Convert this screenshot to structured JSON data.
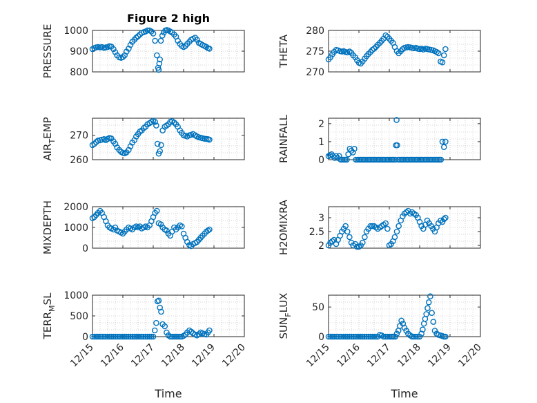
{
  "figure": {
    "title": "Figure 2 high",
    "marker_color": "#0072BD",
    "axis_color": "#262626",
    "grid_color": "#c8c8c8"
  },
  "chart_data": [
    {
      "id": "pressure",
      "type": "scatter",
      "ylabel": "PRESSURE",
      "ylabel_sub": null,
      "title": "Figure 2 high",
      "xlim": [
        15,
        20
      ],
      "ylim": [
        800,
        1000
      ],
      "yticks": [
        800,
        900,
        1000
      ],
      "xticks": [],
      "xlabel": "",
      "grid": true,
      "x": [
        15.0,
        15.06,
        15.12,
        15.18,
        15.25,
        15.31,
        15.38,
        15.44,
        15.5,
        15.56,
        15.62,
        15.69,
        15.75,
        15.81,
        15.88,
        15.94,
        16.0,
        16.06,
        16.12,
        16.19,
        16.25,
        16.31,
        16.38,
        16.44,
        16.5,
        16.56,
        16.62,
        16.69,
        16.75,
        16.81,
        16.88,
        16.94,
        17.0,
        17.06,
        17.12,
        17.16,
        17.18,
        17.2,
        17.22,
        17.25,
        17.3,
        17.35,
        17.4,
        17.45,
        17.5,
        17.56,
        17.62,
        17.69,
        17.75,
        17.81,
        17.88,
        17.94,
        18.0,
        18.06,
        18.12,
        18.19,
        18.25,
        18.31,
        18.38,
        18.44,
        18.5,
        18.56,
        18.62,
        18.69,
        18.75,
        18.8,
        18.85
      ],
      "y": [
        910,
        915,
        918,
        920,
        918,
        920,
        916,
        918,
        920,
        924,
        922,
        910,
        895,
        880,
        870,
        868,
        872,
        880,
        898,
        912,
        930,
        945,
        955,
        965,
        972,
        980,
        988,
        992,
        995,
        1000,
        1000,
        995,
        985,
        950,
        880,
        820,
        810,
        840,
        860,
        950,
        975,
        990,
        1000,
        1002,
        1000,
        995,
        990,
        980,
        970,
        950,
        935,
        925,
        920,
        925,
        935,
        945,
        955,
        960,
        965,
        955,
        940,
        935,
        930,
        925,
        920,
        915,
        912
      ]
    },
    {
      "id": "theta",
      "type": "scatter",
      "ylabel": "THETA",
      "ylabel_sub": null,
      "xlim": [
        15,
        20
      ],
      "ylim": [
        270,
        280
      ],
      "yticks": [
        270,
        275,
        280
      ],
      "xticks": [],
      "xlabel": "",
      "grid": true,
      "x": [
        15.0,
        15.06,
        15.12,
        15.18,
        15.25,
        15.31,
        15.38,
        15.44,
        15.5,
        15.56,
        15.62,
        15.69,
        15.75,
        15.81,
        15.88,
        15.94,
        16.0,
        16.06,
        16.12,
        16.19,
        16.25,
        16.31,
        16.38,
        16.44,
        16.5,
        16.56,
        16.62,
        16.69,
        16.75,
        16.81,
        16.88,
        16.94,
        17.0,
        17.06,
        17.12,
        17.18,
        17.25,
        17.31,
        17.38,
        17.44,
        17.5,
        17.56,
        17.62,
        17.69,
        17.75,
        17.81,
        17.88,
        17.94,
        18.0,
        18.06,
        18.12,
        18.19,
        18.25,
        18.31,
        18.38,
        18.44,
        18.5,
        18.56,
        18.62,
        18.69,
        18.75,
        18.8,
        18.85
      ],
      "y": [
        273.0,
        273.5,
        274.2,
        274.8,
        275.3,
        275.2,
        275.0,
        274.9,
        275.0,
        274.8,
        274.7,
        274.9,
        274.6,
        274.0,
        273.5,
        272.8,
        272.2,
        272.0,
        272.5,
        273.2,
        273.8,
        274.3,
        274.8,
        275.3,
        275.6,
        276.0,
        276.5,
        277.0,
        277.5,
        278.0,
        278.8,
        278.5,
        278.0,
        277.5,
        277.0,
        276.0,
        275.0,
        274.5,
        275.0,
        275.5,
        275.8,
        275.9,
        276.0,
        275.9,
        275.8,
        275.7,
        275.8,
        275.6,
        275.5,
        275.6,
        275.4,
        275.6,
        275.5,
        275.4,
        275.3,
        275.2,
        275.0,
        274.8,
        274.5,
        272.5,
        272.3,
        274.0,
        275.5
      ]
    },
    {
      "id": "air_temp",
      "type": "scatter",
      "ylabel": "AIR",
      "ylabel_sub": "T",
      "ylabel_suffix": "EMP",
      "xlim": [
        15,
        20
      ],
      "ylim": [
        260,
        277
      ],
      "yticks": [
        260,
        270
      ],
      "xticks": [],
      "xlabel": "",
      "grid": true,
      "x": [
        15.0,
        15.06,
        15.12,
        15.18,
        15.25,
        15.31,
        15.38,
        15.44,
        15.5,
        15.56,
        15.62,
        15.69,
        15.75,
        15.81,
        15.88,
        15.94,
        16.0,
        16.06,
        16.12,
        16.19,
        16.25,
        16.31,
        16.38,
        16.44,
        16.5,
        16.56,
        16.62,
        16.69,
        16.75,
        16.81,
        16.88,
        16.94,
        17.0,
        17.06,
        17.1,
        17.14,
        17.18,
        17.22,
        17.26,
        17.31,
        17.38,
        17.44,
        17.5,
        17.56,
        17.62,
        17.69,
        17.75,
        17.81,
        17.88,
        17.94,
        18.0,
        18.06,
        18.12,
        18.19,
        18.25,
        18.31,
        18.38,
        18.44,
        18.5,
        18.56,
        18.62,
        18.69,
        18.75,
        18.8,
        18.85
      ],
      "y": [
        266,
        266.5,
        267.2,
        267.8,
        268.0,
        268.2,
        268.4,
        268.0,
        268.5,
        268.9,
        268.7,
        267.5,
        266.5,
        265.0,
        264.0,
        263.2,
        262.8,
        262.6,
        263.0,
        264.0,
        265.5,
        267.0,
        268.0,
        269.5,
        270.5,
        271.5,
        272.0,
        273.0,
        273.5,
        274.5,
        275.0,
        275.5,
        276.0,
        275.5,
        274.0,
        266.5,
        262.5,
        263.5,
        266.0,
        272.0,
        273.5,
        274.0,
        274.5,
        275.5,
        275.8,
        275.2,
        274.5,
        273.5,
        272.0,
        271.0,
        270.0,
        269.8,
        269.5,
        270.0,
        270.2,
        270.5,
        270.0,
        269.5,
        269.2,
        269.0,
        268.8,
        268.6,
        268.5,
        268.4,
        268.2
      ]
    },
    {
      "id": "rainfall",
      "type": "scatter",
      "ylabel": "RAINFALL",
      "ylabel_sub": null,
      "xlim": [
        15,
        20
      ],
      "ylim": [
        0,
        2.3
      ],
      "yticks": [
        0,
        1,
        2
      ],
      "xticks": [],
      "xlabel": "",
      "grid": true,
      "x": [
        15.0,
        15.05,
        15.1,
        15.15,
        15.2,
        15.25,
        15.3,
        15.35,
        15.4,
        15.45,
        15.5,
        15.55,
        15.6,
        15.65,
        15.7,
        15.75,
        15.8,
        15.85,
        15.9,
        15.95,
        16.0,
        16.05,
        16.1,
        16.15,
        16.2,
        16.25,
        16.3,
        16.35,
        16.4,
        16.45,
        16.5,
        16.55,
        16.6,
        16.65,
        16.7,
        16.75,
        16.8,
        16.85,
        16.9,
        16.95,
        17.0,
        17.05,
        17.1,
        17.15,
        17.2,
        17.22,
        17.24,
        17.26,
        17.3,
        17.35,
        17.4,
        17.45,
        17.5,
        17.55,
        17.6,
        17.65,
        17.7,
        17.75,
        17.8,
        17.85,
        17.9,
        17.95,
        18.0,
        18.05,
        18.1,
        18.15,
        18.2,
        18.25,
        18.3,
        18.35,
        18.4,
        18.45,
        18.5,
        18.55,
        18.6,
        18.65,
        18.7,
        18.75,
        18.8,
        18.85
      ],
      "y": [
        0.2,
        0.25,
        0.3,
        0.2,
        0.1,
        0.2,
        0.1,
        0.2,
        0,
        0,
        0,
        0,
        0,
        0.3,
        0.6,
        0.5,
        0.4,
        0.6,
        0,
        0,
        0,
        0,
        0,
        0,
        0,
        0,
        0,
        0,
        0,
        0,
        0,
        0,
        0,
        0,
        0,
        0,
        0,
        0,
        0,
        0,
        0,
        0,
        0,
        0,
        0,
        0.8,
        2.2,
        0.8,
        0,
        0,
        0,
        0,
        0,
        0,
        0,
        0,
        0,
        0,
        0,
        0,
        0,
        0,
        0,
        0,
        0,
        0,
        0,
        0,
        0,
        0,
        0,
        0,
        0,
        0,
        0,
        0,
        0,
        1.0,
        0.7,
        1.0
      ]
    },
    {
      "id": "mixdepth",
      "type": "scatter",
      "ylabel": "MIXDEPTH",
      "ylabel_sub": null,
      "xlim": [
        15,
        20
      ],
      "ylim": [
        0,
        2000
      ],
      "yticks": [
        0,
        1000,
        2000
      ],
      "xticks": [],
      "xlabel": "",
      "grid": true,
      "x": [
        15.0,
        15.06,
        15.12,
        15.18,
        15.25,
        15.31,
        15.38,
        15.44,
        15.5,
        15.56,
        15.62,
        15.69,
        15.75,
        15.81,
        15.88,
        15.94,
        16.0,
        16.06,
        16.12,
        16.19,
        16.25,
        16.31,
        16.38,
        16.44,
        16.5,
        16.56,
        16.62,
        16.69,
        16.75,
        16.81,
        16.88,
        16.94,
        17.0,
        17.06,
        17.12,
        17.18,
        17.25,
        17.31,
        17.38,
        17.44,
        17.5,
        17.56,
        17.62,
        17.69,
        17.75,
        17.81,
        17.88,
        17.94,
        18.0,
        18.06,
        18.12,
        18.19,
        18.25,
        18.31,
        18.38,
        18.44,
        18.5,
        18.56,
        18.62,
        18.69,
        18.75,
        18.8,
        18.85
      ],
      "y": [
        1450,
        1500,
        1600,
        1700,
        1800,
        1700,
        1500,
        1300,
        1100,
        1000,
        950,
        900,
        1000,
        850,
        800,
        750,
        700,
        800,
        900,
        1000,
        950,
        900,
        1000,
        1050,
        1000,
        1050,
        950,
        1000,
        1050,
        1000,
        1100,
        1300,
        1500,
        1700,
        1800,
        1200,
        1150,
        1000,
        900,
        850,
        700,
        600,
        800,
        1000,
        900,
        1000,
        1100,
        1050,
        700,
        500,
        300,
        150,
        100,
        200,
        250,
        300,
        400,
        500,
        600,
        700,
        800,
        850,
        900
      ]
    },
    {
      "id": "h2omixra",
      "type": "scatter",
      "ylabel": "H2OMIXRA",
      "ylabel_sub": null,
      "xlim": [
        15,
        20
      ],
      "ylim": [
        1.9,
        3.4
      ],
      "yticks": [
        2,
        2.5,
        3
      ],
      "xticks": [],
      "xlabel": "",
      "grid": true,
      "x": [
        15.0,
        15.06,
        15.12,
        15.18,
        15.25,
        15.31,
        15.38,
        15.44,
        15.5,
        15.56,
        15.62,
        15.69,
        15.75,
        15.81,
        15.88,
        15.94,
        16.0,
        16.06,
        16.12,
        16.19,
        16.25,
        16.31,
        16.38,
        16.44,
        16.5,
        16.56,
        16.62,
        16.69,
        16.75,
        16.81,
        16.88,
        16.94,
        17.0,
        17.06,
        17.12,
        17.18,
        17.25,
        17.31,
        17.38,
        17.44,
        17.5,
        17.56,
        17.62,
        17.69,
        17.75,
        17.81,
        17.88,
        17.94,
        18.0,
        18.06,
        18.12,
        18.19,
        18.25,
        18.31,
        18.38,
        18.44,
        18.5,
        18.56,
        18.62,
        18.69,
        18.75,
        18.8,
        18.85
      ],
      "y": [
        2.0,
        2.1,
        2.15,
        2.2,
        2.05,
        2.2,
        2.35,
        2.5,
        2.6,
        2.7,
        2.5,
        2.3,
        2.1,
        2.0,
        2.05,
        1.95,
        1.95,
        2.0,
        2.1,
        2.3,
        2.5,
        2.6,
        2.7,
        2.7,
        2.7,
        2.65,
        2.6,
        2.65,
        2.7,
        2.75,
        2.8,
        2.6,
        2.0,
        2.05,
        2.15,
        2.3,
        2.5,
        2.7,
        2.9,
        3.05,
        3.15,
        3.2,
        3.25,
        3.15,
        3.2,
        3.15,
        3.1,
        3.0,
        2.85,
        2.7,
        2.6,
        2.75,
        2.9,
        2.8,
        2.7,
        2.6,
        2.5,
        2.65,
        2.8,
        2.9,
        2.85,
        2.95,
        3.0
      ]
    },
    {
      "id": "terr_msl",
      "type": "scatter",
      "ylabel": "TERR",
      "ylabel_sub": "M",
      "ylabel_suffix": "SL",
      "xlim": [
        15,
        20
      ],
      "ylim": [
        0,
        1000
      ],
      "yticks": [
        0,
        500,
        1000
      ],
      "xticks": [
        "12/15",
        "12/16",
        "12/17",
        "12/18",
        "12/19",
        "12/20"
      ],
      "xtick_values": [
        15,
        16,
        17,
        18,
        19,
        20
      ],
      "xlabel": "Time",
      "grid": true,
      "x": [
        15.0,
        15.06,
        15.12,
        15.18,
        15.25,
        15.31,
        15.38,
        15.44,
        15.5,
        15.56,
        15.62,
        15.69,
        15.75,
        15.81,
        15.88,
        15.94,
        16.0,
        16.06,
        16.12,
        16.19,
        16.25,
        16.31,
        16.38,
        16.44,
        16.5,
        16.56,
        16.62,
        16.69,
        16.75,
        16.81,
        16.88,
        16.94,
        17.0,
        17.05,
        17.1,
        17.14,
        17.18,
        17.22,
        17.26,
        17.31,
        17.38,
        17.44,
        17.5,
        17.56,
        17.62,
        17.69,
        17.75,
        17.81,
        17.88,
        17.94,
        18.0,
        18.06,
        18.12,
        18.19,
        18.25,
        18.31,
        18.38,
        18.44,
        18.5,
        18.56,
        18.62,
        18.69,
        18.75,
        18.8,
        18.85
      ],
      "y": [
        0,
        0,
        0,
        0,
        0,
        0,
        0,
        0,
        0,
        0,
        0,
        0,
        0,
        0,
        0,
        0,
        0,
        0,
        0,
        0,
        0,
        0,
        0,
        0,
        0,
        0,
        0,
        0,
        0,
        0,
        0,
        0,
        0,
        150,
        330,
        850,
        870,
        700,
        600,
        300,
        250,
        100,
        30,
        0,
        0,
        0,
        0,
        0,
        0,
        0,
        20,
        50,
        100,
        150,
        120,
        80,
        50,
        30,
        60,
        100,
        80,
        60,
        50,
        100,
        150
      ]
    },
    {
      "id": "sun_flux",
      "type": "scatter",
      "ylabel": "SUN",
      "ylabel_sub": "F",
      "ylabel_suffix": "LUX",
      "xlim": [
        15,
        20
      ],
      "ylim": [
        0,
        70
      ],
      "yticks": [
        0,
        50
      ],
      "xticks": [
        "12/15",
        "12/16",
        "12/17",
        "12/18",
        "12/19",
        "12/20"
      ],
      "xtick_values": [
        15,
        16,
        17,
        18,
        19,
        20
      ],
      "xlabel": "Time",
      "grid": true,
      "x": [
        15.0,
        15.06,
        15.12,
        15.18,
        15.25,
        15.31,
        15.38,
        15.44,
        15.5,
        15.56,
        15.62,
        15.69,
        15.75,
        15.81,
        15.88,
        15.94,
        16.0,
        16.06,
        16.12,
        16.19,
        16.25,
        16.31,
        16.38,
        16.44,
        16.5,
        16.56,
        16.62,
        16.69,
        16.75,
        16.81,
        16.88,
        16.94,
        17.0,
        17.05,
        17.1,
        17.15,
        17.2,
        17.25,
        17.3,
        17.35,
        17.4,
        17.45,
        17.5,
        17.56,
        17.62,
        17.69,
        17.75,
        17.81,
        17.88,
        17.94,
        18.0,
        18.06,
        18.1,
        18.14,
        18.18,
        18.22,
        18.26,
        18.3,
        18.35,
        18.4,
        18.45,
        18.5,
        18.56,
        18.62,
        18.69,
        18.75,
        18.8,
        18.85
      ],
      "y": [
        0,
        0,
        0,
        0,
        0,
        0,
        0,
        0,
        0,
        0,
        0,
        0,
        0,
        0,
        0,
        0,
        0,
        0,
        0,
        0,
        0,
        0,
        0,
        0,
        0,
        0,
        0,
        3,
        2,
        0,
        0,
        0,
        0,
        0,
        0,
        0,
        0,
        5,
        10,
        18,
        27,
        22,
        15,
        10,
        5,
        2,
        0,
        0,
        0,
        0,
        0,
        5,
        12,
        22,
        30,
        38,
        48,
        58,
        68,
        40,
        25,
        10,
        5,
        3,
        2,
        1,
        0,
        0
      ]
    }
  ]
}
